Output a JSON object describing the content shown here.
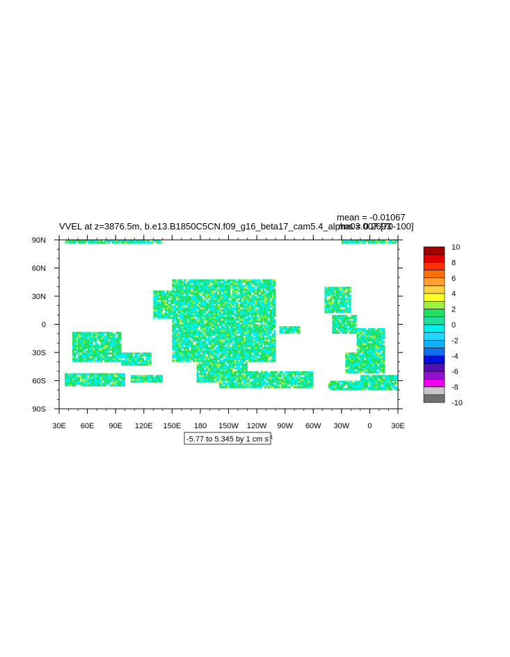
{
  "chart_data": {
    "type": "heatmap",
    "title": "VVEL at z=3876.5m, b.e13.B1850C5CN.f09_g16_beta17_cam5.4_alpha03.007 [70-100]",
    "stats": {
      "mean": "mean = -0.01067",
      "rms": "rms = 0.2693"
    },
    "range_label": "-5.77 to 5.345 by 1 cm s",
    "range_superscript": "-1",
    "x_ticks": [
      "30E",
      "60E",
      "90E",
      "120E",
      "150E",
      "180",
      "150W",
      "120W",
      "90W",
      "60W",
      "30W",
      "0",
      "30E"
    ],
    "y_ticks": [
      "90N",
      "60N",
      "30N",
      "0",
      "30S",
      "60S",
      "90S"
    ],
    "xlim": [
      30,
      390
    ],
    "ylim": [
      -90,
      90
    ],
    "colorbar": {
      "labels": [
        "10",
        "8",
        "6",
        "4",
        "2",
        "0",
        "-2",
        "-4",
        "-6",
        "-8",
        "-10"
      ],
      "colors": [
        "#a00000",
        "#e00000",
        "#ff3000",
        "#ff7000",
        "#ffa030",
        "#ffd040",
        "#ffff20",
        "#a0f040",
        "#20e060",
        "#20e0a0",
        "#00f0f0",
        "#20d8ff",
        "#10b0ff",
        "#1070f0",
        "#0010e0",
        "#5010b0",
        "#9010d0",
        "#ee00ee",
        "#c8c8c8",
        "#707070"
      ]
    },
    "dominant_colors": {
      "near_zero_pos": "#20e060",
      "near_zero_neg": "#00f0f0",
      "weak_pos": "#a0f040"
    }
  }
}
